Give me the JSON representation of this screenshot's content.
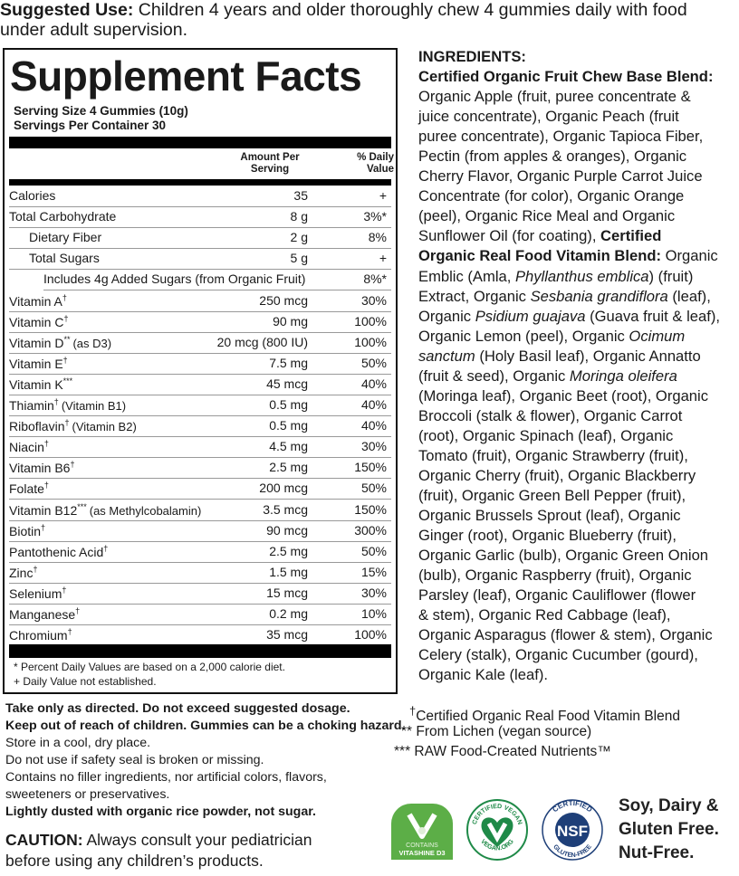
{
  "suggested_use": {
    "label": "Suggested Use:",
    "text": " Children 4 years and older thoroughly chew 4 gummies daily with food under adult supervision."
  },
  "facts": {
    "title": "Supplement Facts",
    "serving_size": "Serving Size 4 Gummies (10g)",
    "servings_per_container": "Servings Per Container 30",
    "col_amount": "Amount Per Serving",
    "col_dv": "% Daily Value",
    "rows": [
      {
        "name": "Calories",
        "amount": "35",
        "dv": "+",
        "indent": 0
      },
      {
        "name": "Total Carbohydrate",
        "amount": "8 g",
        "dv": "3%*",
        "indent": 0
      },
      {
        "name": "Dietary Fiber",
        "amount": "2 g",
        "dv": "8%",
        "indent": 1
      },
      {
        "name": "Total Sugars",
        "amount": "5 g",
        "dv": "+",
        "indent": 1
      },
      {
        "name": "Includes 4g Added Sugars (from Organic Fruit)",
        "amount": "",
        "dv": "8%*",
        "indent": 2
      },
      {
        "name": "Vitamin A",
        "sup": "†",
        "amount": "250 mcg",
        "dv": "30%",
        "indent": 0
      },
      {
        "name": "Vitamin C",
        "sup": "†",
        "amount": "90 mg",
        "dv": "100%",
        "indent": 0
      },
      {
        "name": "Vitamin D",
        "sup": "**",
        "note": "(as D3)",
        "amount": "20 mcg (800 IU)",
        "dv": "100%",
        "indent": 0
      },
      {
        "name": "Vitamin E",
        "sup": "†",
        "amount": "7.5 mg",
        "dv": "50%",
        "indent": 0
      },
      {
        "name": "Vitamin K",
        "sup": "***",
        "amount": "45 mcg",
        "dv": "40%",
        "indent": 0
      },
      {
        "name": "Thiamin",
        "sup": "†",
        "note": "(Vitamin B1)",
        "amount": "0.5 mg",
        "dv": "40%",
        "indent": 0
      },
      {
        "name": "Riboflavin",
        "sup": "†",
        "note": "(Vitamin B2)",
        "amount": "0.5 mg",
        "dv": "40%",
        "indent": 0
      },
      {
        "name": "Niacin",
        "sup": "†",
        "amount": "4.5 mg",
        "dv": "30%",
        "indent": 0
      },
      {
        "name": "Vitamin B6",
        "sup": "†",
        "amount": "2.5 mg",
        "dv": "150%",
        "indent": 0
      },
      {
        "name": "Folate",
        "sup": "†",
        "amount": "200 mcg",
        "dv": "50%",
        "indent": 0
      },
      {
        "name": "Vitamin B12",
        "sup": "***",
        "note": "(as Methylcobalamin)",
        "amount": "3.5 mcg",
        "dv": "150%",
        "indent": 0
      },
      {
        "name": "Biotin",
        "sup": "†",
        "amount": "90 mcg",
        "dv": "300%",
        "indent": 0
      },
      {
        "name": "Pantothenic Acid",
        "sup": "†",
        "amount": "2.5 mg",
        "dv": "50%",
        "indent": 0
      },
      {
        "name": "Zinc",
        "sup": "†",
        "amount": "1.5 mg",
        "dv": "15%",
        "indent": 0
      },
      {
        "name": "Selenium",
        "sup": "†",
        "amount": "15 mcg",
        "dv": "30%",
        "indent": 0
      },
      {
        "name": "Manganese",
        "sup": "†",
        "amount": "0.2 mg",
        "dv": "10%",
        "indent": 0
      },
      {
        "name": "Chromium",
        "sup": "†",
        "amount": "35 mcg",
        "dv": "100%",
        "indent": 0
      }
    ],
    "footnote_1": "* Percent Daily Values are based on a 2,000 calorie diet.",
    "footnote_2": "+ Daily Value not established."
  },
  "ingredients": {
    "lines": [
      [
        [
          "INGREDIENTS:",
          "b"
        ]
      ],
      [
        [
          "Certified Organic Fruit Chew Base Blend:",
          "b"
        ]
      ],
      [
        [
          "Organic Apple (fruit, puree concentrate &",
          ""
        ]
      ],
      [
        [
          "juice concentrate), Organic Peach (fruit",
          ""
        ]
      ],
      [
        [
          "puree concentrate), Organic Tapioca Fiber,",
          ""
        ]
      ],
      [
        [
          "Pectin (from apples & oranges), Organic",
          ""
        ]
      ],
      [
        [
          "Cherry Flavor, Organic Purple Carrot Juice",
          ""
        ]
      ],
      [
        [
          "Concentrate (for color), Organic Orange",
          ""
        ]
      ],
      [
        [
          "(peel), Organic Rice Meal and Organic",
          ""
        ]
      ],
      [
        [
          "Sunflower Oil (for coating), ",
          ""
        ],
        [
          "Certified",
          "b"
        ]
      ],
      [
        [
          "Organic Real Food Vitamin Blend:",
          "b"
        ],
        [
          " Organic",
          ""
        ]
      ],
      [
        [
          "Emblic (Amla, ",
          ""
        ],
        [
          "Phyllanthus emblica",
          "i"
        ],
        [
          ") (fruit)",
          ""
        ]
      ],
      [
        [
          "Extract, Organic ",
          ""
        ],
        [
          "Sesbania grandiflora",
          "i"
        ],
        [
          " (leaf),",
          ""
        ]
      ],
      [
        [
          "Organic ",
          ""
        ],
        [
          "Psidium guajava",
          "i"
        ],
        [
          " (Guava fruit & leaf),",
          ""
        ]
      ],
      [
        [
          "Organic Lemon (peel), Organic ",
          ""
        ],
        [
          "Ocimum",
          "i"
        ]
      ],
      [
        [
          "sanctum",
          "i"
        ],
        [
          " (Holy Basil leaf), Organic Annatto",
          ""
        ]
      ],
      [
        [
          "(fruit & seed), Organic ",
          ""
        ],
        [
          "Moringa oleifera",
          "i"
        ]
      ],
      [
        [
          "(Moringa leaf), Organic Beet (root), Organic",
          ""
        ]
      ],
      [
        [
          "Broccoli (stalk & flower), Organic Carrot",
          ""
        ]
      ],
      [
        [
          "(root), Organic Spinach (leaf), Organic",
          ""
        ]
      ],
      [
        [
          "Tomato (fruit), Organic Strawberry (fruit),",
          ""
        ]
      ],
      [
        [
          "Organic Cherry (fruit), Organic Blackberry",
          ""
        ]
      ],
      [
        [
          "(fruit), Organic Green Bell Pepper (fruit),",
          ""
        ]
      ],
      [
        [
          "Organic Brussels Sprout (leaf), Organic",
          ""
        ]
      ],
      [
        [
          "Ginger (root), Organic Blueberry (fruit),",
          ""
        ]
      ],
      [
        [
          "Organic Garlic (bulb), Organic Green Onion",
          ""
        ]
      ],
      [
        [
          "(bulb), Organic Raspberry (fruit), Organic",
          ""
        ]
      ],
      [
        [
          "Parsley (leaf), Organic Cauliflower (flower",
          ""
        ]
      ],
      [
        [
          "& stem), Organic Red Cabbage (leaf),",
          ""
        ]
      ],
      [
        [
          "Organic Asparagus (flower & stem), Organic",
          ""
        ]
      ],
      [
        [
          "Celery (stalk), Organic Cucumber (gourd),",
          ""
        ]
      ],
      [
        [
          "Organic Kale (leaf).",
          ""
        ]
      ]
    ]
  },
  "warnings": [
    {
      "text": "Take only as directed. Do not exceed suggested dosage.",
      "bold": true
    },
    {
      "text": "Keep out of reach of children. Gummies can be a choking hazard.",
      "bold": true
    },
    {
      "text": "Store in a cool, dry place.",
      "bold": false
    },
    {
      "text": "Do not use if safety seal is broken or missing.",
      "bold": false
    },
    {
      "text": "Contains no filler ingredients, nor artificial colors, flavors,",
      "bold": false
    },
    {
      "text": "sweeteners or preservatives.",
      "bold": false
    },
    {
      "text": "Lightly dusted with organic rice powder, not sugar.",
      "bold": true
    }
  ],
  "caution": {
    "label": "CAUTION:",
    "line1": " Always consult your pediatrician",
    "line2": "before using any children’s products."
  },
  "legend": {
    "dagger": "†",
    "dagger_text": "Certified Organic Real Food Vitamin Blend",
    "double": "**",
    "double_text": "From Lichen (vegan source)",
    "triple": "***",
    "triple_text": "RAW Food-Created Nutrients™"
  },
  "badges": {
    "vitashine": {
      "line1": "CONTAINS",
      "line2": "VITASHINE D3",
      "color": "#5cae47"
    },
    "vegan": {
      "top": "CERTIFIED VEGAN",
      "bottom": "VEGAN.ORG",
      "color": "#1f8a48"
    },
    "nsf": {
      "top": "CERTIFIED",
      "center": "NSF",
      "bottom": "GLUTEN-FREE",
      "color": "#1e3f78"
    }
  },
  "free_from": [
    "Soy, Dairy &",
    "Gluten Free.",
    "Nut-Free."
  ]
}
